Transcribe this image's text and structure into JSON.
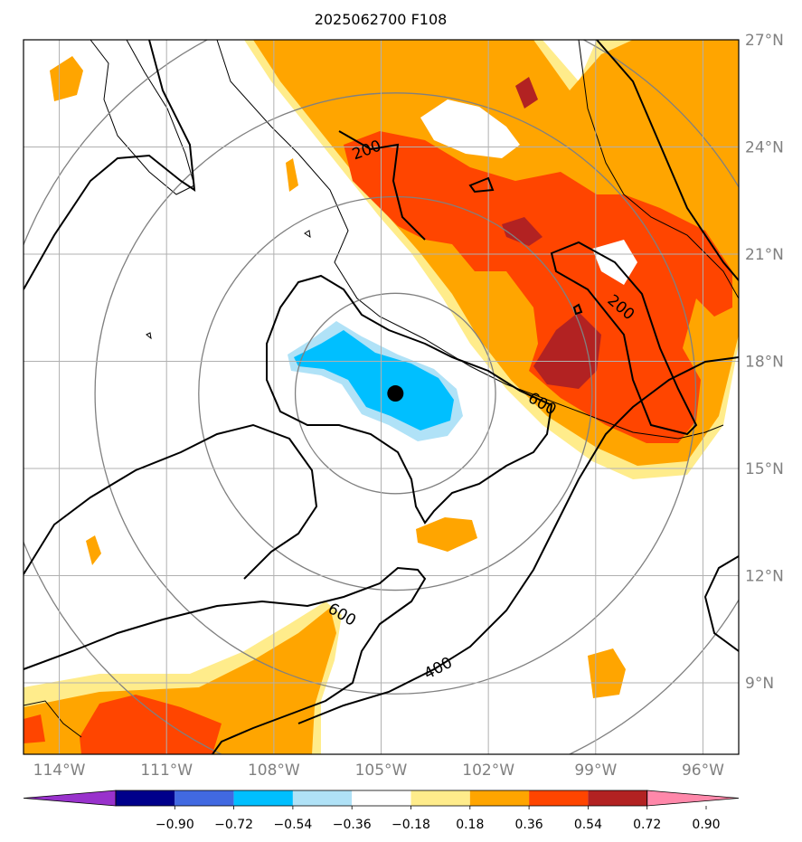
{
  "chart_data": {
    "type": "heatmap",
    "title": "2025062700 F108",
    "map": {
      "lon_range": [
        -115.0,
        -95.0
      ],
      "lat_range": [
        7.0,
        27.0
      ],
      "gridlines": true,
      "x_ticks": [
        {
          "lon": -114,
          "label": "114°W"
        },
        {
          "lon": -111,
          "label": "111°W"
        },
        {
          "lon": -108,
          "label": "108°W"
        },
        {
          "lon": -105,
          "label": "105°W"
        },
        {
          "lon": -102,
          "label": "102°W"
        },
        {
          "lon": -99,
          "label": "99°W"
        },
        {
          "lon": -96,
          "label": "96°W"
        }
      ],
      "y_ticks": [
        {
          "lat": 27,
          "label": "27°N"
        },
        {
          "lat": 24,
          "label": "24°N"
        },
        {
          "lat": 21,
          "label": "21°N"
        },
        {
          "lat": 18,
          "label": "18°N"
        },
        {
          "lat": 15,
          "label": "15°N"
        },
        {
          "lat": 12,
          "label": "12°N"
        },
        {
          "lat": 9,
          "label": "9°N"
        }
      ]
    },
    "storm_center": {
      "lon": -104.6,
      "lat": 17.1
    },
    "range_rings": [
      {
        "radius_deg": 2.8
      },
      {
        "radius_deg": 5.5
      },
      {
        "radius_deg": 8.4
      },
      {
        "radius_deg": 11.2
      }
    ],
    "contour_labels": [
      {
        "text": "200",
        "lon": -105.4,
        "lat": 23.9,
        "angle": -20
      },
      {
        "text": "200",
        "lon": -98.3,
        "lat": 19.5,
        "angle": 40
      },
      {
        "text": "600",
        "lon": -100.5,
        "lat": 16.8,
        "angle": 30
      },
      {
        "text": "600",
        "lon": -106.1,
        "lat": 10.9,
        "angle": 30
      },
      {
        "text": "400",
        "lon": -103.4,
        "lat": 9.4,
        "angle": -28
      }
    ],
    "colorbar": {
      "ticks": [
        "−0.90",
        "−0.72",
        "−0.54",
        "−0.36",
        "−0.18",
        "0.18",
        "0.36",
        "0.54",
        "0.72",
        "0.90"
      ],
      "colors": [
        "#9932cc",
        "#00008b",
        "#4169e1",
        "#00bfff",
        "#b0e2f7",
        "#ffffff",
        "#ffec8b",
        "#ffa500",
        "#ff4500",
        "#b22222",
        "#ff88aa"
      ],
      "extend": "both"
    },
    "fill_colors": {
      "weak_pos": "#ffec8b",
      "mid_pos": "#ffa500",
      "strong_pos": "#ff4500",
      "max_pos": "#b22222",
      "weak_neg": "#b0e2f7",
      "mid_neg": "#00bfff"
    }
  }
}
